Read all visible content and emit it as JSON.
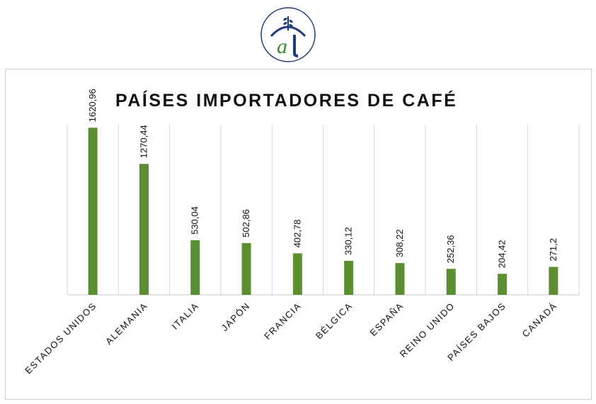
{
  "colors": {
    "bar": "#5b8f32",
    "logo_blue": "#1f3a7a",
    "logo_green": "#3c8a34"
  },
  "logo": {
    "icon": "wheat-arch-logo",
    "letters": "ar"
  },
  "chart_data": {
    "type": "bar",
    "title": "PAÍSES IMPORTADORES DE CAFÉ",
    "categories": [
      "ESTADOS UNIDOS",
      "ALEMANIA",
      "ITALIA",
      "JAPÓN",
      "FRANCIA",
      "BÉLGICA",
      "ESPAÑA",
      "REINO UNIDO",
      "PAÍSES BAJOS",
      "CANADÁ"
    ],
    "values": [
      1620.96,
      1270.44,
      530.04,
      502.86,
      402.78,
      330.12,
      308.22,
      252.36,
      204.42,
      271.2
    ],
    "data_labels": [
      "1620,96",
      "1270,44",
      "530,04",
      "502,86",
      "402,78",
      "330,12",
      "308,22",
      "252,36",
      "204,42",
      "271,2"
    ],
    "xlabel": "",
    "ylabel": "",
    "ylim": [
      0,
      1650
    ],
    "grid": "vertical",
    "legend": "none"
  }
}
